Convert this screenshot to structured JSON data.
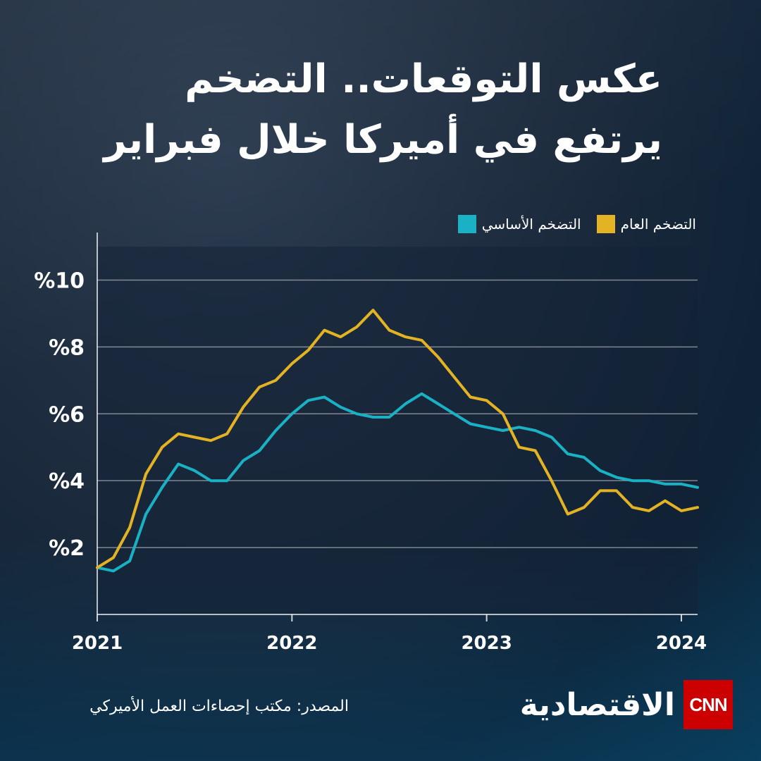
{
  "title": "عكس التوقعات.. التضخم يرتفع في أميركا خلال فبراير",
  "legend": {
    "core_label": "التضخم الأساسي",
    "headline_label": "التضخم العام"
  },
  "source": "المصدر: مكتب إحصاءات العمل الأميركي",
  "logo": {
    "brand_text": "الاقتصادية",
    "cnn_text": "CNN"
  },
  "colors": {
    "core": "#1ab1c4",
    "headline": "#e3b324"
  },
  "chart_data": {
    "type": "line",
    "title": "عكس التوقعات.. التضخم يرتفع في أميركا خلال فبراير",
    "xlabel": "",
    "ylabel": "",
    "x": [
      "2021-01",
      "2021-02",
      "2021-03",
      "2021-04",
      "2021-05",
      "2021-06",
      "2021-07",
      "2021-08",
      "2021-09",
      "2021-10",
      "2021-11",
      "2021-12",
      "2022-01",
      "2022-02",
      "2022-03",
      "2022-04",
      "2022-05",
      "2022-06",
      "2022-07",
      "2022-08",
      "2022-09",
      "2022-10",
      "2022-11",
      "2022-12",
      "2023-01",
      "2023-02",
      "2023-03",
      "2023-04",
      "2023-05",
      "2023-06",
      "2023-07",
      "2023-08",
      "2023-09",
      "2023-10",
      "2023-11",
      "2023-12",
      "2024-01",
      "2024-02"
    ],
    "x_ticks": [
      "2021",
      "2022",
      "2023",
      "2024"
    ],
    "y_ticks": [
      "%2",
      "%4",
      "%6",
      "%8",
      "%10"
    ],
    "y_tick_values": [
      2,
      4,
      6,
      8,
      10
    ],
    "ylim": [
      0,
      11
    ],
    "grid": true,
    "legend_position": "top-right",
    "series": [
      {
        "name": "التضخم الأساسي",
        "color": "#1ab1c4",
        "values": [
          1.4,
          1.3,
          1.6,
          3.0,
          3.8,
          4.5,
          4.3,
          4.0,
          4.0,
          4.6,
          4.9,
          5.5,
          6.0,
          6.4,
          6.5,
          6.2,
          6.0,
          5.9,
          5.9,
          6.3,
          6.6,
          6.3,
          6.0,
          5.7,
          5.6,
          5.5,
          5.6,
          5.5,
          5.3,
          4.8,
          4.7,
          4.3,
          4.1,
          4.0,
          4.0,
          3.9,
          3.9,
          3.8
        ]
      },
      {
        "name": "التضخم العام",
        "color": "#e3b324",
        "values": [
          1.4,
          1.7,
          2.6,
          4.2,
          5.0,
          5.4,
          5.3,
          5.2,
          5.4,
          6.2,
          6.8,
          7.0,
          7.5,
          7.9,
          8.5,
          8.3,
          8.6,
          9.1,
          8.5,
          8.3,
          8.2,
          7.7,
          7.1,
          6.5,
          6.4,
          6.0,
          5.0,
          4.9,
          4.0,
          3.0,
          3.2,
          3.7,
          3.7,
          3.2,
          3.1,
          3.4,
          3.1,
          3.2
        ]
      }
    ]
  }
}
